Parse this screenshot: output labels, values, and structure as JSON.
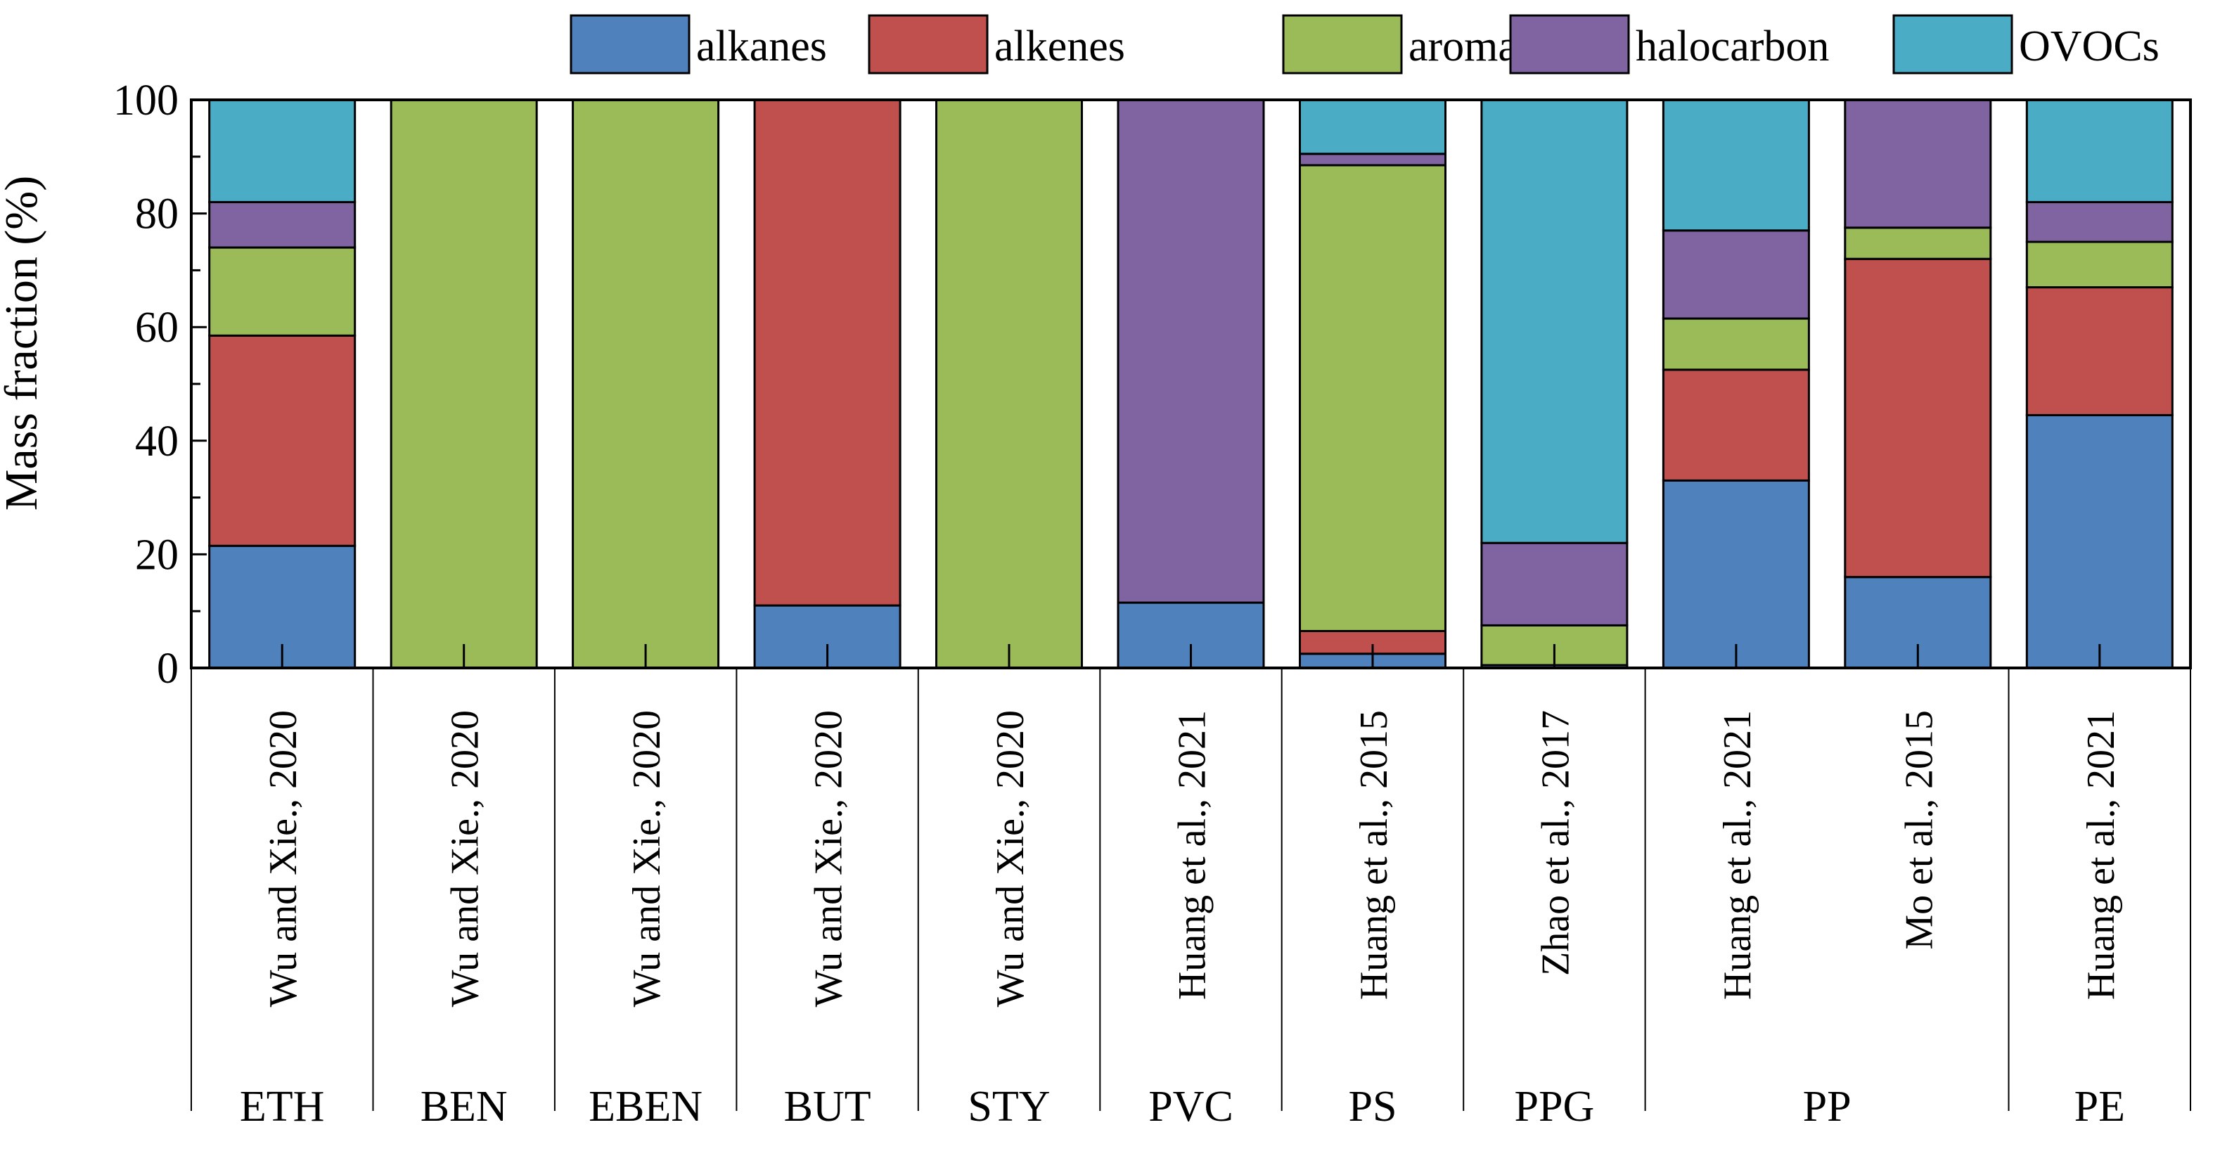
{
  "chart_data": {
    "type": "stacked-bar",
    "title": "",
    "ylabel": "Mass fraction (%)",
    "xlabel": "",
    "ylim": [
      0,
      100
    ],
    "yticks": [
      "0",
      "20",
      "40",
      "60",
      "80",
      "100"
    ],
    "legend_position": "top-right",
    "series": [
      {
        "name": "alkanes",
        "color": "#4f81bd",
        "values": [
          21.5,
          0,
          0,
          11,
          0,
          11.5,
          2.5,
          0.5,
          33,
          16,
          44.5
        ]
      },
      {
        "name": "alkenes",
        "color": "#c0504d",
        "values": [
          37,
          0,
          0,
          89,
          0,
          0,
          4,
          0,
          19.5,
          56,
          22.5
        ]
      },
      {
        "name": "aromatics",
        "color": "#9bbb59",
        "values": [
          15.5,
          100,
          100,
          0,
          100,
          0,
          82,
          7,
          9,
          5.5,
          8
        ]
      },
      {
        "name": "halocarbon",
        "color": "#8064a2",
        "values": [
          8,
          0,
          0,
          0,
          0,
          88.5,
          2,
          14.5,
          15.5,
          22.5,
          7
        ]
      },
      {
        "name": "OVOCs",
        "color": "#4bacc6",
        "values": [
          18,
          0,
          0,
          0,
          0,
          0,
          9.5,
          78,
          23,
          0,
          18
        ]
      }
    ],
    "bars": [
      {
        "source": "Wu and Xie., 2020",
        "group": "ETH"
      },
      {
        "source": "Wu and Xie., 2020",
        "group": "BEN"
      },
      {
        "source": "Wu and Xie., 2020",
        "group": "EBEN"
      },
      {
        "source": "Wu and Xie., 2020",
        "group": "BUT"
      },
      {
        "source": "Wu and Xie., 2020",
        "group": "STY"
      },
      {
        "source": "Huang et al., 2021",
        "group": "PVC"
      },
      {
        "source": "Huang et al., 2015",
        "group": "PS"
      },
      {
        "source": "Zhao et al., 2017",
        "group": "PPG"
      },
      {
        "source": "Huang et al., 2021",
        "group": "PP"
      },
      {
        "source": "Mo et al., 2015",
        "group": "PP"
      },
      {
        "source": "Huang et al., 2021",
        "group": "PE"
      }
    ],
    "groups": [
      {
        "label": "ETH",
        "bars": [
          0
        ]
      },
      {
        "label": "BEN",
        "bars": [
          1
        ]
      },
      {
        "label": "EBEN",
        "bars": [
          2
        ]
      },
      {
        "label": "BUT",
        "bars": [
          3
        ]
      },
      {
        "label": "STY",
        "bars": [
          4
        ]
      },
      {
        "label": "PVC",
        "bars": [
          5
        ]
      },
      {
        "label": "PS",
        "bars": [
          6
        ]
      },
      {
        "label": "PPG",
        "bars": [
          7
        ]
      },
      {
        "label": "PP",
        "bars": [
          8,
          9
        ]
      },
      {
        "label": "PE",
        "bars": [
          10
        ]
      }
    ]
  }
}
